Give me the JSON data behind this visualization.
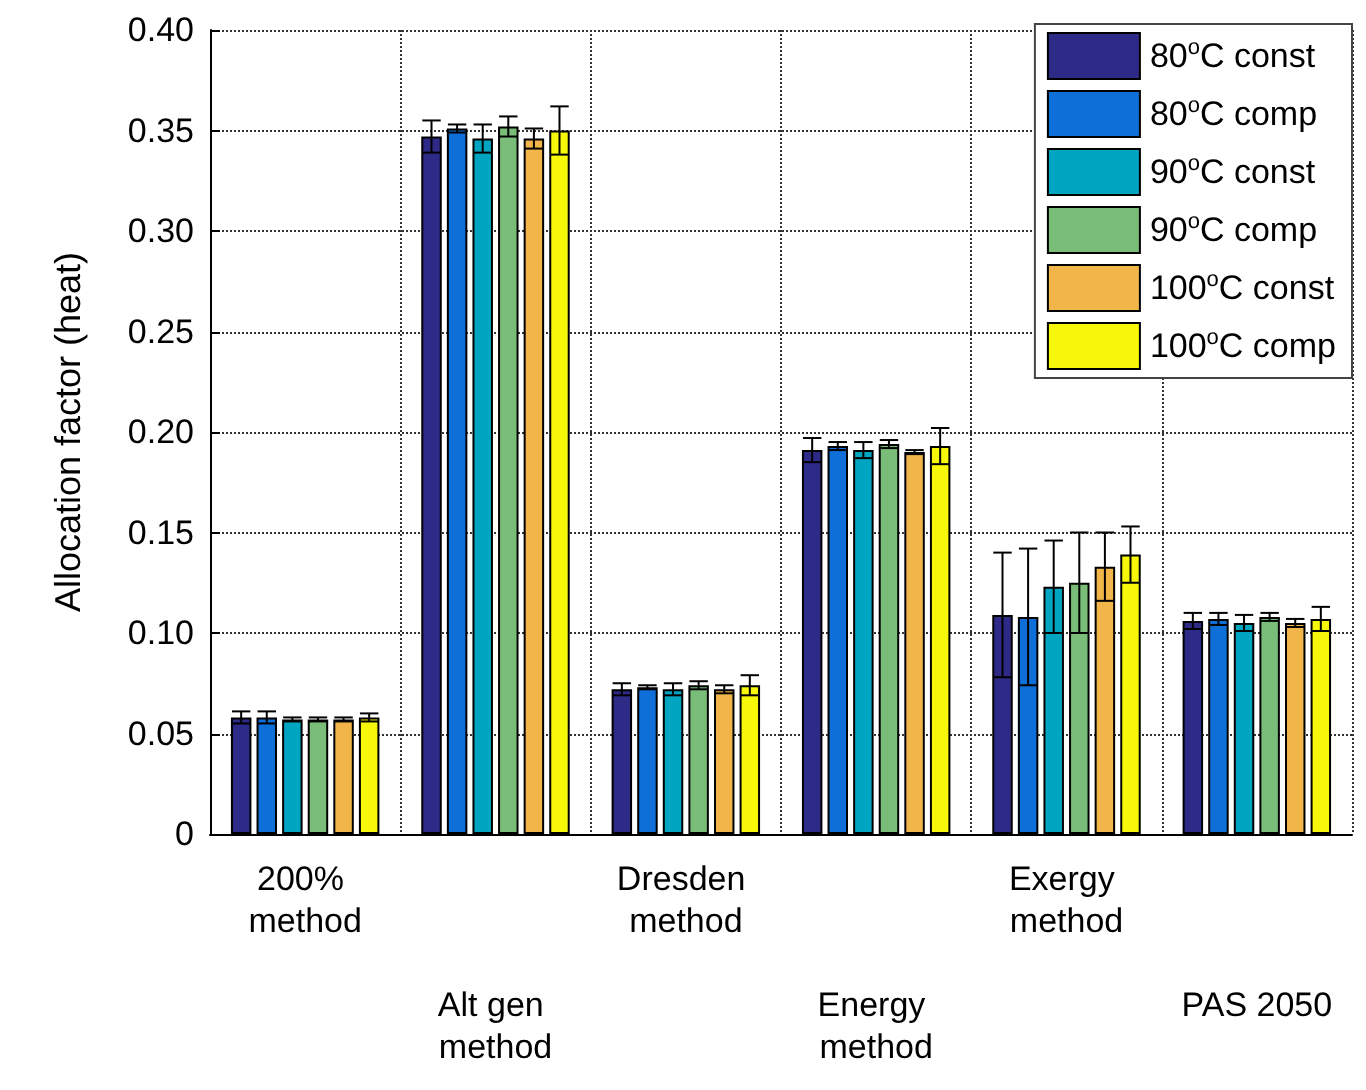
{
  "chart_data": {
    "type": "bar",
    "ylabel": "Allocation factor (heat)",
    "categories": [
      "200% method",
      "Alt gen method",
      "Dresden method",
      "Energy method",
      "Exergy method",
      "PAS 2050"
    ],
    "series": [
      {
        "name": "80$^{o}$C const",
        "color": "#2e2a87",
        "values": [
          0.058,
          0.347,
          0.072,
          0.191,
          0.109,
          0.106
        ],
        "errors": [
          0.003,
          0.008,
          0.003,
          0.006,
          0.031,
          0.004
        ]
      },
      {
        "name": "80$^{o}$C comp",
        "color": "#0f6fd9",
        "values": [
          0.058,
          0.351,
          0.073,
          0.193,
          0.108,
          0.107
        ],
        "errors": [
          0.003,
          0.002,
          0.001,
          0.002,
          0.034,
          0.003
        ]
      },
      {
        "name": "90$^{o}$C const",
        "color": "#00a5c2",
        "values": [
          0.057,
          0.346,
          0.072,
          0.191,
          0.123,
          0.105
        ],
        "errors": [
          0.001,
          0.007,
          0.003,
          0.004,
          0.023,
          0.004
        ]
      },
      {
        "name": "90$^{o}$C comp",
        "color": "#79bd79",
        "values": [
          0.057,
          0.352,
          0.074,
          0.194,
          0.125,
          0.108
        ],
        "errors": [
          0.001,
          0.005,
          0.002,
          0.002,
          0.025,
          0.002
        ]
      },
      {
        "name": "100$^{o}$C const",
        "color": "#f1b54a",
        "values": [
          0.057,
          0.346,
          0.072,
          0.19,
          0.133,
          0.105
        ],
        "errors": [
          0.001,
          0.005,
          0.002,
          0.001,
          0.017,
          0.002
        ]
      },
      {
        "name": "100$^{o}$C comp",
        "color": "#f7f70a",
        "values": [
          0.058,
          0.35,
          0.074,
          0.193,
          0.139,
          0.107
        ],
        "errors": [
          0.002,
          0.012,
          0.005,
          0.009,
          0.014,
          0.006
        ]
      }
    ],
    "ylim": [
      0,
      0.4
    ],
    "yticks": [
      0,
      {
        "value": 0.05,
        "label": "0.05"
      },
      {
        "value": 0.1,
        "label": "0.10"
      },
      {
        "value": 0.15,
        "label": "0.15"
      },
      {
        "value": 0.2,
        "label": "0.20"
      },
      {
        "value": 0.25,
        "label": "0.25"
      },
      {
        "value": 0.3,
        "label": "0.30"
      },
      {
        "value": 0.35,
        "label": "0.35"
      },
      {
        "value": 0.4,
        "label": "0.40"
      }
    ],
    "grid": true,
    "legend": "top right"
  }
}
